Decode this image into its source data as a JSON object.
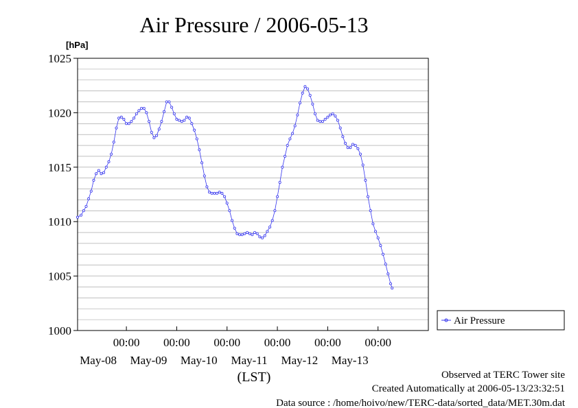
{
  "chart_data": {
    "type": "line",
    "title": "Air Pressure / 2006-05-13",
    "ylabel": "[hPa]",
    "xlabel": "(LST)",
    "ylim": [
      1000,
      1025
    ],
    "yticks": [
      1000,
      1005,
      1010,
      1015,
      1020,
      1025
    ],
    "xlim": [
      -0.97,
      6.0
    ],
    "x_tick_time_label": "00:00",
    "x_ticks": [
      0,
      1,
      2,
      3,
      4,
      5
    ],
    "x_day_labels": [
      "May-08",
      "May-09",
      "May-10",
      "May-11",
      "May-12",
      "May-13"
    ],
    "grid": true,
    "legend": "right",
    "series": [
      {
        "name": "Air Pressure",
        "color": "#3333ee",
        "marker": "circle",
        "points": [
          [
            -0.97,
            1010.4
          ],
          [
            -0.9,
            1010.6
          ],
          [
            -0.85,
            1011.0
          ],
          [
            -0.8,
            1011.4
          ],
          [
            -0.75,
            1012.1
          ],
          [
            -0.7,
            1012.8
          ],
          [
            -0.65,
            1013.8
          ],
          [
            -0.6,
            1014.4
          ],
          [
            -0.55,
            1014.7
          ],
          [
            -0.5,
            1014.4
          ],
          [
            -0.45,
            1014.5
          ],
          [
            -0.4,
            1015.0
          ],
          [
            -0.35,
            1015.5
          ],
          [
            -0.3,
            1016.2
          ],
          [
            -0.25,
            1017.3
          ],
          [
            -0.2,
            1018.6
          ],
          [
            -0.15,
            1019.5
          ],
          [
            -0.1,
            1019.6
          ],
          [
            -0.05,
            1019.4
          ],
          [
            0.0,
            1019.0
          ],
          [
            0.05,
            1019.0
          ],
          [
            0.1,
            1019.2
          ],
          [
            0.15,
            1019.5
          ],
          [
            0.2,
            1019.9
          ],
          [
            0.25,
            1020.2
          ],
          [
            0.3,
            1020.4
          ],
          [
            0.35,
            1020.4
          ],
          [
            0.4,
            1020.0
          ],
          [
            0.45,
            1019.2
          ],
          [
            0.5,
            1018.2
          ],
          [
            0.55,
            1017.7
          ],
          [
            0.6,
            1017.9
          ],
          [
            0.65,
            1018.5
          ],
          [
            0.7,
            1019.2
          ],
          [
            0.75,
            1020.1
          ],
          [
            0.8,
            1021.0
          ],
          [
            0.85,
            1021.0
          ],
          [
            0.9,
            1020.5
          ],
          [
            0.95,
            1019.9
          ],
          [
            1.0,
            1019.4
          ],
          [
            1.05,
            1019.3
          ],
          [
            1.1,
            1019.2
          ],
          [
            1.15,
            1019.3
          ],
          [
            1.2,
            1019.6
          ],
          [
            1.25,
            1019.5
          ],
          [
            1.3,
            1019.0
          ],
          [
            1.35,
            1018.4
          ],
          [
            1.4,
            1017.6
          ],
          [
            1.45,
            1016.6
          ],
          [
            1.5,
            1015.4
          ],
          [
            1.55,
            1014.2
          ],
          [
            1.6,
            1013.2
          ],
          [
            1.65,
            1012.7
          ],
          [
            1.7,
            1012.6
          ],
          [
            1.75,
            1012.6
          ],
          [
            1.8,
            1012.6
          ],
          [
            1.85,
            1012.7
          ],
          [
            1.9,
            1012.6
          ],
          [
            1.95,
            1012.3
          ],
          [
            2.0,
            1011.7
          ],
          [
            2.05,
            1011.0
          ],
          [
            2.1,
            1010.1
          ],
          [
            2.15,
            1009.4
          ],
          [
            2.2,
            1008.9
          ],
          [
            2.25,
            1008.8
          ],
          [
            2.3,
            1008.8
          ],
          [
            2.35,
            1008.9
          ],
          [
            2.4,
            1009.0
          ],
          [
            2.45,
            1008.9
          ],
          [
            2.5,
            1008.8
          ],
          [
            2.55,
            1009.0
          ],
          [
            2.6,
            1008.9
          ],
          [
            2.65,
            1008.6
          ],
          [
            2.7,
            1008.5
          ],
          [
            2.75,
            1008.7
          ],
          [
            2.8,
            1009.1
          ],
          [
            2.85,
            1009.5
          ],
          [
            2.9,
            1010.1
          ],
          [
            2.95,
            1011.0
          ],
          [
            3.0,
            1012.3
          ],
          [
            3.05,
            1013.6
          ],
          [
            3.1,
            1015.0
          ],
          [
            3.15,
            1016.0
          ],
          [
            3.2,
            1017.0
          ],
          [
            3.25,
            1017.6
          ],
          [
            3.3,
            1018.1
          ],
          [
            3.35,
            1018.8
          ],
          [
            3.4,
            1019.8
          ],
          [
            3.45,
            1020.9
          ],
          [
            3.5,
            1021.8
          ],
          [
            3.55,
            1022.4
          ],
          [
            3.6,
            1022.2
          ],
          [
            3.65,
            1021.6
          ],
          [
            3.7,
            1020.8
          ],
          [
            3.75,
            1019.9
          ],
          [
            3.8,
            1019.3
          ],
          [
            3.85,
            1019.2
          ],
          [
            3.9,
            1019.2
          ],
          [
            3.95,
            1019.4
          ],
          [
            4.0,
            1019.6
          ],
          [
            4.05,
            1019.8
          ],
          [
            4.1,
            1019.9
          ],
          [
            4.15,
            1019.7
          ],
          [
            4.2,
            1019.3
          ],
          [
            4.25,
            1018.6
          ],
          [
            4.3,
            1017.8
          ],
          [
            4.35,
            1017.2
          ],
          [
            4.4,
            1016.8
          ],
          [
            4.45,
            1016.8
          ],
          [
            4.5,
            1017.1
          ],
          [
            4.55,
            1017.0
          ],
          [
            4.6,
            1016.7
          ],
          [
            4.65,
            1016.2
          ],
          [
            4.7,
            1015.2
          ],
          [
            4.75,
            1013.8
          ],
          [
            4.8,
            1012.3
          ],
          [
            4.85,
            1011.0
          ],
          [
            4.9,
            1009.8
          ],
          [
            4.95,
            1009.1
          ],
          [
            5.0,
            1008.5
          ],
          [
            5.05,
            1007.8
          ],
          [
            5.1,
            1007.0
          ],
          [
            5.15,
            1006.1
          ],
          [
            5.2,
            1005.2
          ],
          [
            5.25,
            1004.3
          ],
          [
            5.28,
            1003.9
          ]
        ]
      }
    ]
  },
  "footer": {
    "observed": "Observed at TERC Tower site",
    "created": "Created Automatically at 2006-05-13/23:32:51",
    "source": "Data source : /home/hoivo/new/TERC-data/sorted_data/MET.30m.dat"
  }
}
